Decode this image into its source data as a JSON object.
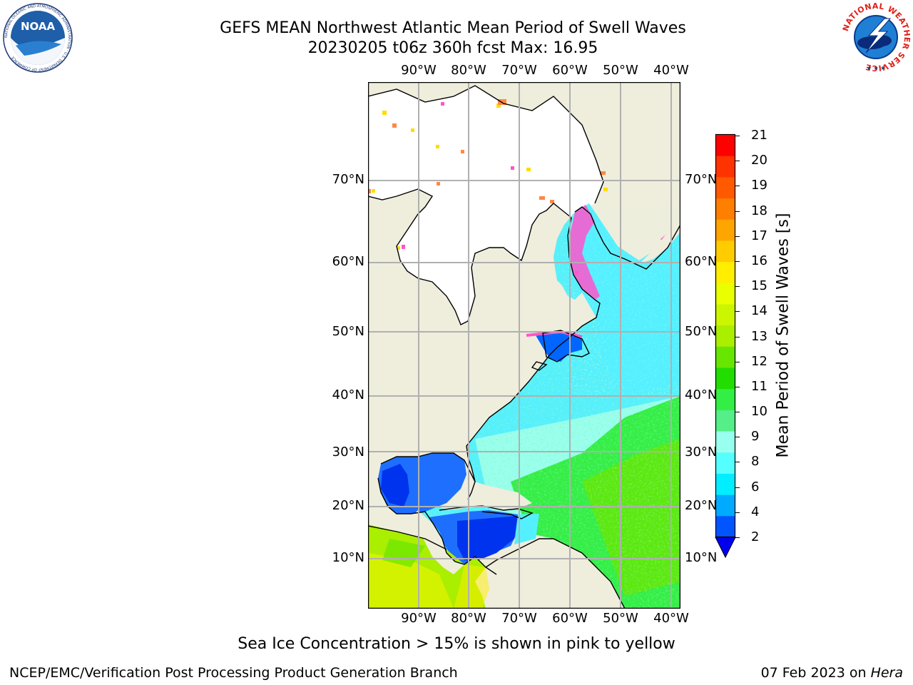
{
  "title": {
    "line1": "GEFS MEAN Northwest Atlantic Mean Period of Swell Waves",
    "line2": "20230205 t06z 360h fcst   Max: 16.95"
  },
  "map": {
    "lon_labels": [
      "90°W",
      "80°W",
      "70°W",
      "60°W",
      "50°W",
      "40°W"
    ],
    "lat_labels": [
      "70°N",
      "60°N",
      "50°N",
      "40°N",
      "30°N",
      "20°N",
      "10°N"
    ],
    "colors": {
      "land": "#efeddc",
      "ice_area": "#ffffff",
      "grid": "#b0b0b0"
    }
  },
  "colorbar": {
    "label": "Mean Period of Swell Waves [s]",
    "ticks": [
      "21",
      "20",
      "19",
      "18",
      "17",
      "16",
      "15",
      "14",
      "13",
      "12",
      "11",
      "10",
      "9",
      "8",
      "6",
      "4",
      "2"
    ],
    "colors": [
      "#ff0000",
      "#ff3300",
      "#ff5a00",
      "#ff7f00",
      "#ffa500",
      "#ffcc00",
      "#ffee00",
      "#eaff00",
      "#ccf500",
      "#aaee00",
      "#66e600",
      "#22dd00",
      "#33ee44",
      "#55ee88",
      "#99ffee",
      "#55ffff",
      "#00eeff",
      "#00aaff",
      "#0055ff"
    ],
    "under_color": "#0000ee"
  },
  "caption": "Sea Ice Concentration > 15% is shown in pink to yellow",
  "footer": {
    "left": "NCEP/EMC/Verification Post Processing Product Generation Branch",
    "date": "07 Feb 2023 on ",
    "machine": "Hera"
  },
  "logos": {
    "noaa_text": "NOAA",
    "noaa_ring": "NATIONAL OCEANIC AND ATMOSPHERIC ADMINISTRATION · U.S. DEPARTMENT OF COMMERCE",
    "nws_ring": "NATIONAL WEATHER SERVICE"
  }
}
